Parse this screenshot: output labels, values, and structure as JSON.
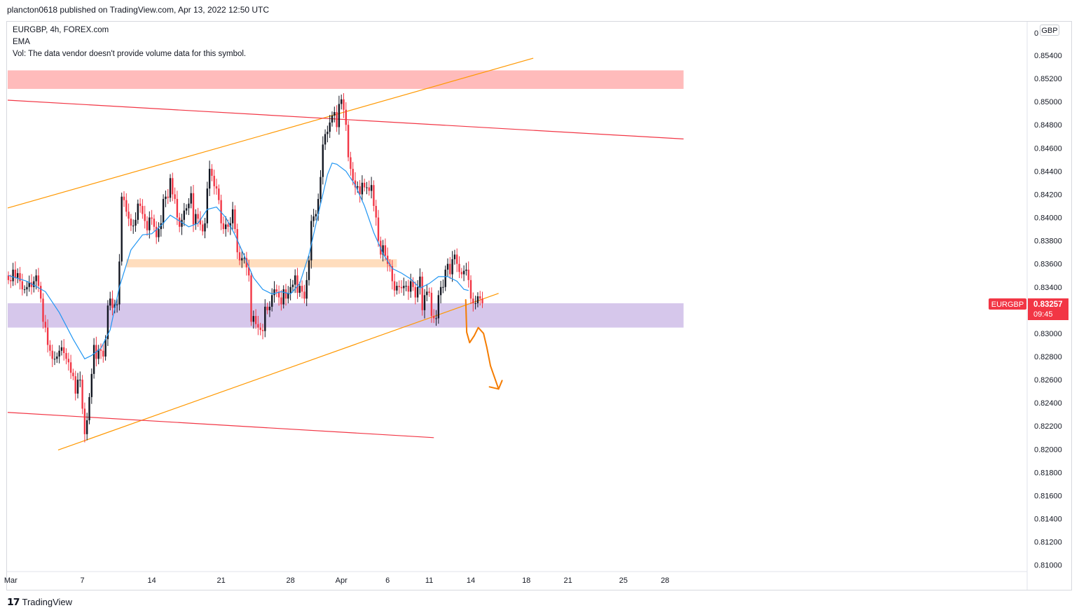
{
  "header": {
    "published_text": "plancton0618 published on TradingView.com, Apr 13, 2022 12:50 UTC"
  },
  "legend": {
    "symbol_line": "EURGBP, 4h, FOREX.com",
    "indicator": "EMA",
    "volume_note": "Vol: The data vendor doesn't provide volume data for this symbol."
  },
  "axis": {
    "currency_button": "GBP",
    "top_cut_label": "0"
  },
  "price_tag": {
    "symbol": "EURGBP",
    "price": "0.83257",
    "countdown": "09:45",
    "color": "#f23645"
  },
  "footer": {
    "brand": "TradingView"
  },
  "colors": {
    "up": "#131722",
    "down": "#f23645",
    "wick_down": "#f23645",
    "ema": "#2196f3",
    "trend_orange": "#ff9800",
    "trend_red": "#f23645",
    "arrow": "#f57c00",
    "zone_red": "rgba(255,120,120,0.50)",
    "zone_orange": "rgba(255,170,90,0.40)",
    "zone_purple": "rgba(165,130,210,0.45)"
  },
  "chart_data": {
    "type": "candlestick",
    "symbol": "EURGBP",
    "timeframe": "4h",
    "ylim": [
      0.8095,
      0.8569
    ],
    "y_ticks": [
      "0.85400",
      "0.85200",
      "0.85000",
      "0.84800",
      "0.84600",
      "0.84400",
      "0.84200",
      "0.84000",
      "0.83800",
      "0.83600",
      "0.83400",
      "0.83200",
      "0.83000",
      "0.82800",
      "0.82600",
      "0.82400",
      "0.82200",
      "0.82000",
      "0.81800",
      "0.81600",
      "0.81400",
      "0.81200",
      "0.81000"
    ],
    "x_ticks": [
      {
        "label": "Mar",
        "bar": 1
      },
      {
        "label": "7",
        "bar": 32
      },
      {
        "label": "14",
        "bar": 62
      },
      {
        "label": "21",
        "bar": 92
      },
      {
        "label": "28",
        "bar": 122
      },
      {
        "label": "Apr",
        "bar": 144
      },
      {
        "label": "6",
        "bar": 164
      },
      {
        "label": "11",
        "bar": 182
      },
      {
        "label": "14",
        "bar": 200
      },
      {
        "label": "18",
        "bar": 224
      },
      {
        "label": "21",
        "bar": 242
      },
      {
        "label": "25",
        "bar": 266
      },
      {
        "label": "28",
        "bar": 284
      }
    ],
    "close": [
      0.8346,
      0.8345,
      0.8355,
      0.8348,
      0.8352,
      0.8345,
      0.8338,
      0.8338,
      0.834,
      0.8344,
      0.834,
      0.8345,
      0.835,
      0.8341,
      0.833,
      0.831,
      0.8305,
      0.829,
      0.8285,
      0.8278,
      0.8278,
      0.828,
      0.8285,
      0.8288,
      0.8283,
      0.8278,
      0.8275,
      0.8266,
      0.8263,
      0.8248,
      0.826,
      0.826,
      0.8235,
      0.8213,
      0.8225,
      0.8245,
      0.8265,
      0.829,
      0.8278,
      0.8286,
      0.8285,
      0.828,
      0.8295,
      0.8324,
      0.833,
      0.8322,
      0.8325,
      0.8325,
      0.8362,
      0.8418,
      0.8415,
      0.8405,
      0.8399,
      0.8393,
      0.8393,
      0.8398,
      0.8412,
      0.841,
      0.8403,
      0.8397,
      0.8389,
      0.84,
      0.8399,
      0.8392,
      0.8383,
      0.839,
      0.8395,
      0.8416,
      0.8418,
      0.8417,
      0.8434,
      0.842,
      0.8416,
      0.84,
      0.8392,
      0.8398,
      0.8406,
      0.8408,
      0.8412,
      0.8421,
      0.8394,
      0.8403,
      0.8399,
      0.8394,
      0.8388,
      0.8395,
      0.8425,
      0.8442,
      0.8436,
      0.8427,
      0.8425,
      0.8415,
      0.8395,
      0.839,
      0.8394,
      0.8392,
      0.8395,
      0.8407,
      0.839,
      0.837,
      0.8363,
      0.8365,
      0.8365,
      0.8357,
      0.835,
      0.831,
      0.8315,
      0.8308,
      0.8305,
      0.8303,
      0.8302,
      0.8323,
      0.832,
      0.8323,
      0.8333,
      0.8338,
      0.8336,
      0.8331,
      0.8325,
      0.8338,
      0.833,
      0.8335,
      0.834,
      0.8342,
      0.835,
      0.8335,
      0.8341,
      0.8336,
      0.833,
      0.8346,
      0.8363,
      0.8397,
      0.8401,
      0.8403,
      0.8416,
      0.8435,
      0.8463,
      0.8472,
      0.8474,
      0.8482,
      0.8488,
      0.8491,
      0.8478,
      0.8498,
      0.8502,
      0.8493,
      0.848,
      0.8452,
      0.8442,
      0.8432,
      0.8426,
      0.8427,
      0.842,
      0.843,
      0.8426,
      0.8426,
      0.8423,
      0.8428,
      0.841,
      0.84,
      0.838,
      0.8368,
      0.8376,
      0.8367,
      0.836,
      0.8358,
      0.8345,
      0.8337,
      0.8341,
      0.834,
      0.8339,
      0.8341,
      0.8341,
      0.8336,
      0.8345,
      0.834,
      0.8331,
      0.834,
      0.8349,
      0.832,
      0.8333,
      0.8336,
      0.8335,
      0.8315,
      0.8313,
      0.8313,
      0.8333,
      0.834,
      0.834,
      0.8355,
      0.836,
      0.8351,
      0.8364,
      0.8368,
      0.836,
      0.8353,
      0.8351,
      0.8354,
      0.8355,
      0.8346,
      0.833,
      0.8326,
      0.8326,
      0.8332,
      0.833,
      0.8326
    ],
    "ema_points": [
      {
        "bar": 0,
        "y": 0.835
      },
      {
        "bar": 8,
        "y": 0.8345
      },
      {
        "bar": 16,
        "y": 0.8336
      },
      {
        "bar": 22,
        "y": 0.8318
      },
      {
        "bar": 28,
        "y": 0.8295
      },
      {
        "bar": 33,
        "y": 0.8278
      },
      {
        "bar": 36,
        "y": 0.8281
      },
      {
        "bar": 40,
        "y": 0.8287
      },
      {
        "bar": 44,
        "y": 0.8303
      },
      {
        "bar": 48,
        "y": 0.834
      },
      {
        "bar": 53,
        "y": 0.8372
      },
      {
        "bar": 58,
        "y": 0.8385
      },
      {
        "bar": 62,
        "y": 0.8386
      },
      {
        "bar": 66,
        "y": 0.8393
      },
      {
        "bar": 70,
        "y": 0.8402
      },
      {
        "bar": 74,
        "y": 0.8397
      },
      {
        "bar": 78,
        "y": 0.8392
      },
      {
        "bar": 82,
        "y": 0.8395
      },
      {
        "bar": 86,
        "y": 0.8407
      },
      {
        "bar": 90,
        "y": 0.8409
      },
      {
        "bar": 94,
        "y": 0.84
      },
      {
        "bar": 98,
        "y": 0.8385
      },
      {
        "bar": 102,
        "y": 0.8367
      },
      {
        "bar": 106,
        "y": 0.8348
      },
      {
        "bar": 110,
        "y": 0.8338
      },
      {
        "bar": 114,
        "y": 0.8334
      },
      {
        "bar": 118,
        "y": 0.8336
      },
      {
        "bar": 122,
        "y": 0.8334
      },
      {
        "bar": 126,
        "y": 0.8343
      },
      {
        "bar": 130,
        "y": 0.8368
      },
      {
        "bar": 134,
        "y": 0.8403
      },
      {
        "bar": 138,
        "y": 0.8437
      },
      {
        "bar": 140,
        "y": 0.8447
      },
      {
        "bar": 142,
        "y": 0.8446
      },
      {
        "bar": 146,
        "y": 0.844
      },
      {
        "bar": 150,
        "y": 0.8428
      },
      {
        "bar": 154,
        "y": 0.841
      },
      {
        "bar": 158,
        "y": 0.8387
      },
      {
        "bar": 162,
        "y": 0.8369
      },
      {
        "bar": 166,
        "y": 0.8356
      },
      {
        "bar": 170,
        "y": 0.8352
      },
      {
        "bar": 174,
        "y": 0.8347
      },
      {
        "bar": 178,
        "y": 0.8339
      },
      {
        "bar": 182,
        "y": 0.8343
      },
      {
        "bar": 186,
        "y": 0.8349
      },
      {
        "bar": 190,
        "y": 0.8349
      },
      {
        "bar": 194,
        "y": 0.8345
      },
      {
        "bar": 197,
        "y": 0.8338
      },
      {
        "bar": 199,
        "y": 0.8337
      }
    ],
    "trendlines": [
      {
        "name": "upper-channel-orange",
        "color": "#ff9800",
        "x1": -0.4,
        "y1": 0.84082,
        "x2": 227,
        "y2": 0.85375
      },
      {
        "name": "lower-channel-orange",
        "color": "#ff9800",
        "x1": 21.5,
        "y1": 0.81993,
        "x2": 212,
        "y2": 0.83345
      },
      {
        "name": "upper-red-line",
        "color": "#f23645",
        "x1": -0.4,
        "y1": 0.85013,
        "x2": 292,
        "y2": 0.84678
      },
      {
        "name": "lower-red-line",
        "color": "#f23645",
        "x1": -0.4,
        "y1": 0.82318,
        "x2": 184,
        "y2": 0.821
      }
    ],
    "zones": [
      {
        "name": "resistance-zone-red",
        "color": "rgba(255,120,120,0.50)",
        "y1": 0.8511,
        "y2": 0.8527,
        "x1": -0.4,
        "x2": 292
      },
      {
        "name": "mid-zone-orange",
        "color": "rgba(255,170,90,0.40)",
        "y1": 0.8357,
        "y2": 0.8364,
        "x1": 51,
        "x2": 168
      },
      {
        "name": "support-zone-purple",
        "color": "rgba(165,130,210,0.45)",
        "y1": 0.8305,
        "y2": 0.8326,
        "x1": -0.4,
        "x2": 292
      }
    ],
    "projection_path": [
      [
        197.8,
        0.8329
      ],
      [
        198.2,
        0.8301
      ],
      [
        199.5,
        0.8292
      ],
      [
        201.5,
        0.8298
      ],
      [
        203.2,
        0.8305
      ],
      [
        205.5,
        0.83
      ],
      [
        206.9,
        0.8288
      ],
      [
        208.5,
        0.8272
      ],
      [
        212,
        0.8252
      ]
    ]
  }
}
